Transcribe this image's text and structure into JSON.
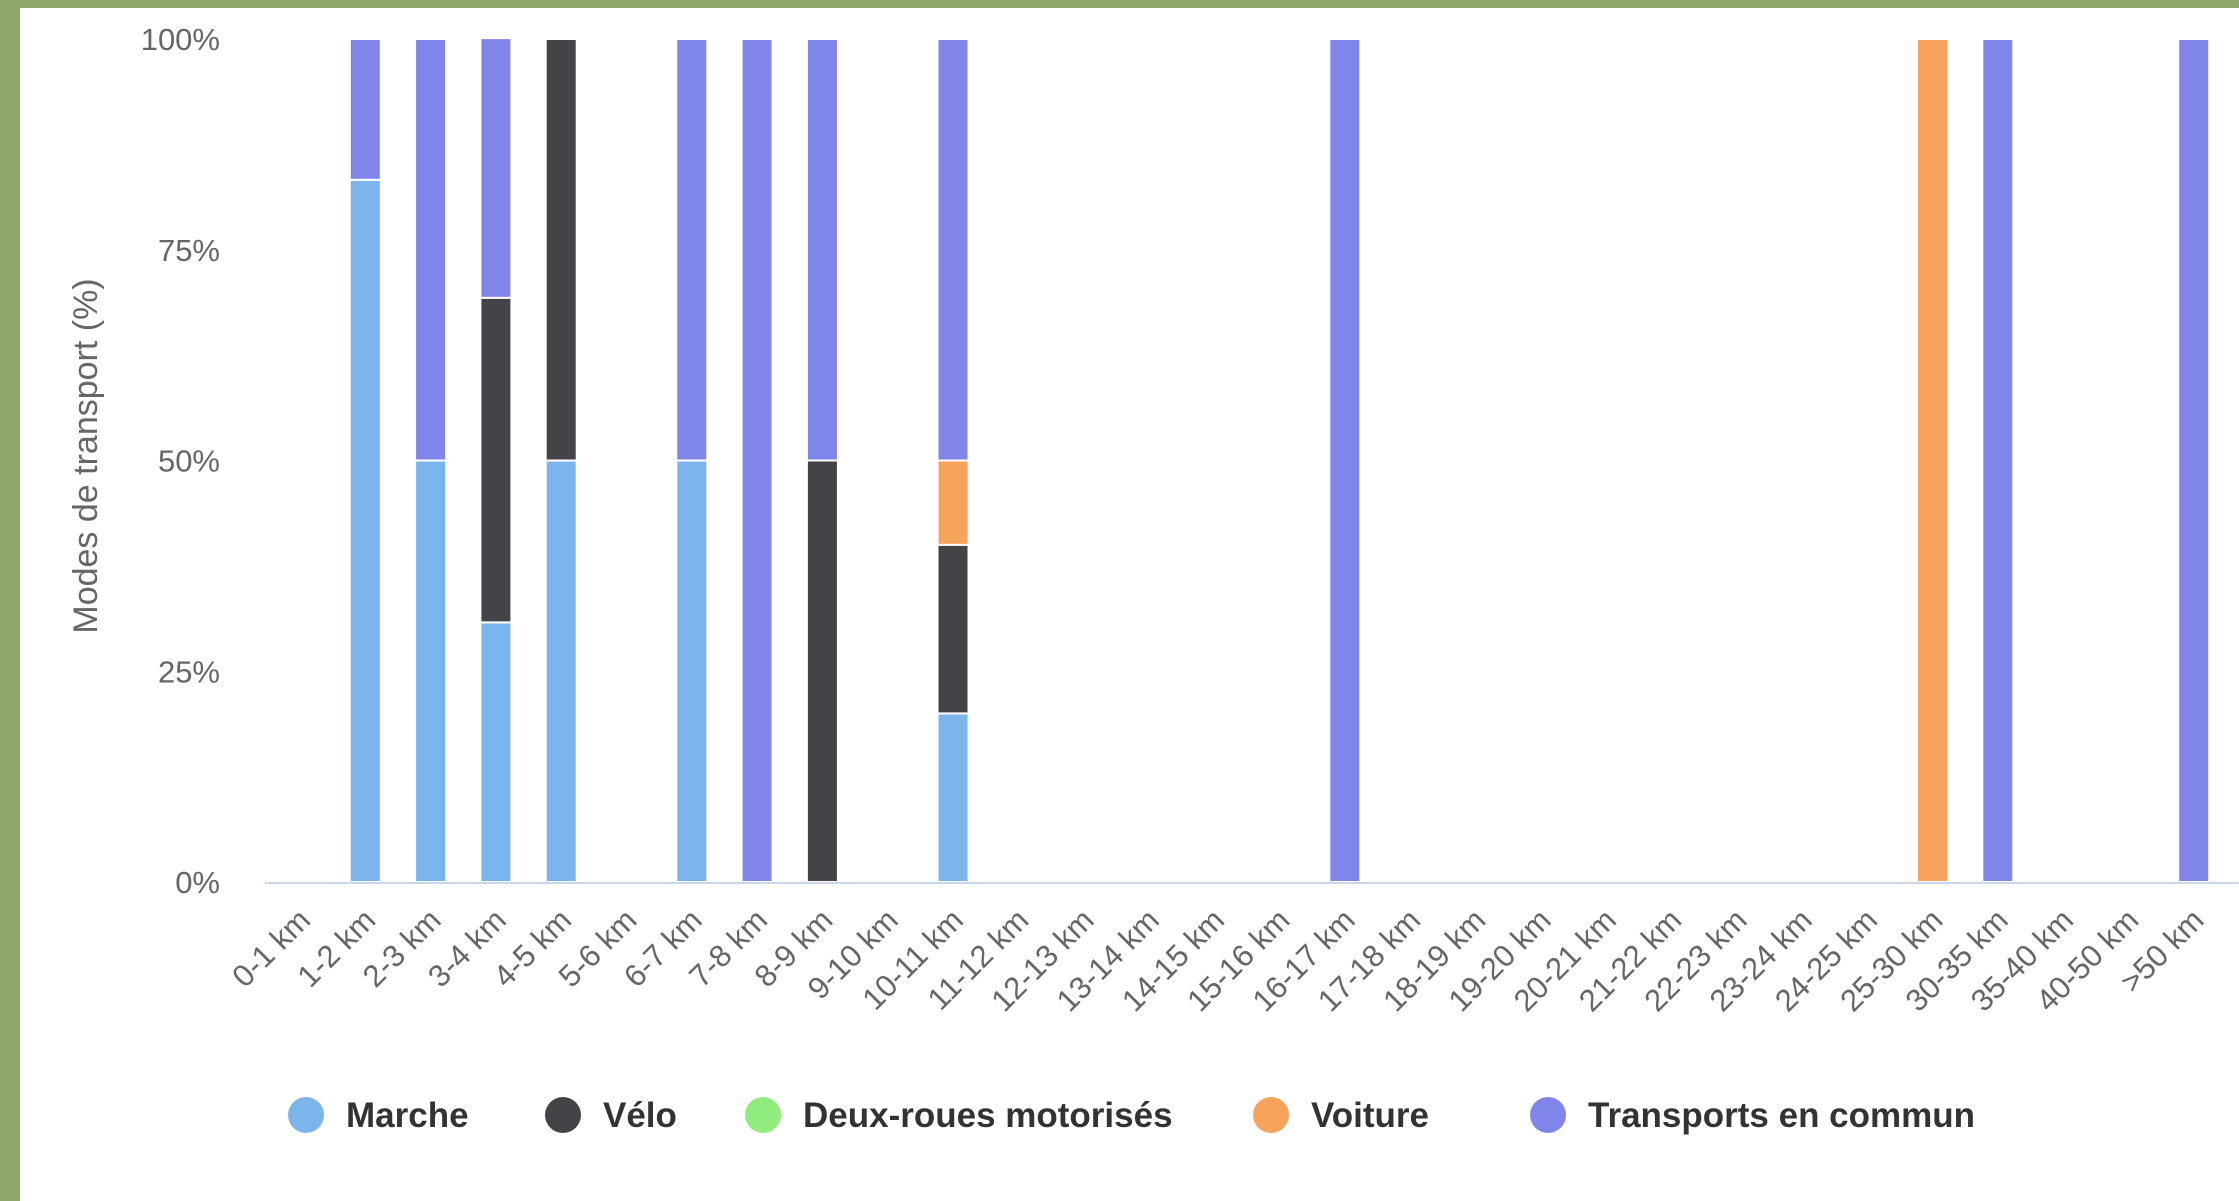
{
  "chart_data": {
    "type": "bar",
    "stacked": true,
    "percent": true,
    "ylabel": "Modes de transport (%)",
    "xlabel": "",
    "ylim": [
      0,
      100
    ],
    "yticks": [
      "0%",
      "25%",
      "50%",
      "75%",
      "100%"
    ],
    "grid": false,
    "legend_position": "bottom",
    "categories": [
      "0-1 km",
      "1-2 km",
      "2-3 km",
      "3-4 km",
      "4-5 km",
      "5-6 km",
      "6-7 km",
      "7-8 km",
      "8-9 km",
      "9-10 km",
      "10-11 km",
      "11-12 km",
      "12-13 km",
      "13-14 km",
      "14-15 km",
      "15-16 km",
      "16-17 km",
      "17-18 km",
      "18-19 km",
      "19-20 km",
      "20-21 km",
      "21-22 km",
      "22-23 km",
      "23-24 km",
      "24-25 km",
      "25-30 km",
      "30-35 km",
      "35-40 km",
      "40-50 km",
      ">50 km"
    ],
    "series": [
      {
        "name": "Marche",
        "color": "#7cb5ec",
        "values": [
          0,
          83.3,
          50,
          30.8,
          50,
          0,
          50,
          0,
          0,
          0,
          20,
          0,
          0,
          0,
          0,
          0,
          0,
          0,
          0,
          0,
          0,
          0,
          0,
          0,
          0,
          0,
          0,
          0,
          0,
          0
        ]
      },
      {
        "name": "Vélo",
        "color": "#434348",
        "values": [
          0,
          0,
          0,
          38.5,
          50,
          0,
          0,
          0,
          50,
          0,
          20,
          0,
          0,
          0,
          0,
          0,
          0,
          0,
          0,
          0,
          0,
          0,
          0,
          0,
          0,
          0,
          0,
          0,
          0,
          0
        ]
      },
      {
        "name": "Deux-roues motorisés",
        "color": "#90ed7d",
        "values": [
          0,
          0,
          0,
          0,
          0,
          0,
          0,
          0,
          0,
          0,
          0,
          0,
          0,
          0,
          0,
          0,
          0,
          0,
          0,
          0,
          0,
          0,
          0,
          0,
          0,
          0,
          0,
          0,
          0,
          0
        ]
      },
      {
        "name": "Voiture",
        "color": "#f7a35c",
        "values": [
          0,
          0,
          0,
          0,
          0,
          0,
          0,
          0,
          0,
          0,
          10,
          0,
          0,
          0,
          0,
          0,
          0,
          0,
          0,
          0,
          0,
          0,
          0,
          0,
          0,
          100,
          0,
          0,
          0,
          0
        ]
      },
      {
        "name": "Transports en commun",
        "color": "#8085e9",
        "values": [
          0,
          16.7,
          50,
          30.8,
          0,
          0,
          50,
          100,
          50,
          0,
          50,
          0,
          0,
          0,
          0,
          0,
          100,
          0,
          0,
          0,
          0,
          0,
          0,
          0,
          0,
          0,
          100,
          0,
          0,
          100
        ]
      }
    ]
  }
}
